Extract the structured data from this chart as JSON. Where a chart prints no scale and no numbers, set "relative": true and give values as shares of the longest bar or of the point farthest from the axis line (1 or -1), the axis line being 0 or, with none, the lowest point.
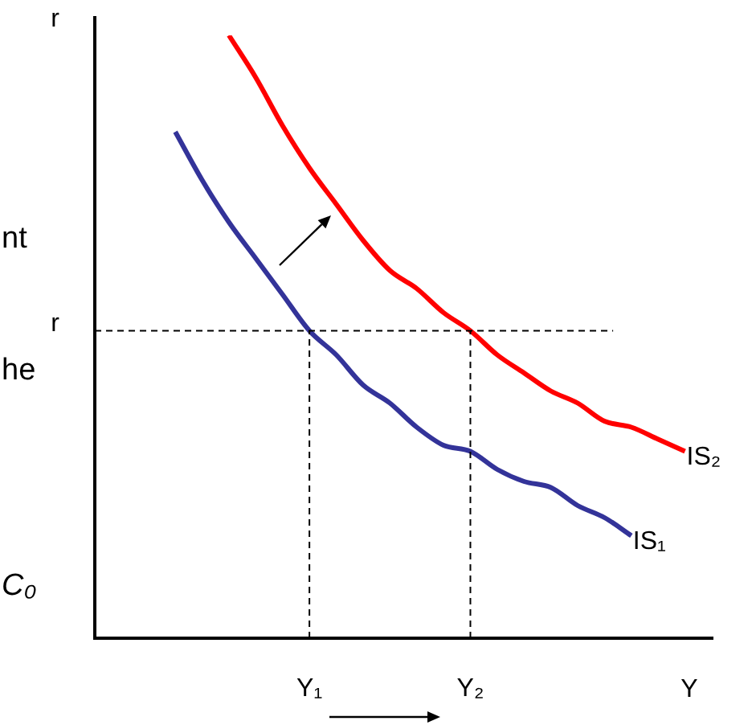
{
  "chart_data": {
    "type": "line",
    "relative": true,
    "ylabel": "r",
    "xlabel": "Y",
    "categories": [
      null,
      null,
      null,
      null,
      null,
      null,
      null,
      null,
      "Y₁",
      null,
      null,
      null,
      null,
      null,
      "Y₂",
      null,
      null,
      null,
      null,
      null,
      null,
      null,
      null,
      null
    ],
    "legend": false,
    "marker": "none",
    "line_style": "solid",
    "ref_lines": [
      {
        "axis": "y",
        "value": 0.51,
        "label": "r",
        "line_style": "dashed"
      },
      {
        "axis": "x",
        "value": "Y₁",
        "line_style": "dashed"
      },
      {
        "axis": "x",
        "value": "Y₂",
        "line_style": "dashed"
      }
    ],
    "annotations": [
      "nt",
      "he",
      "C₀"
    ],
    "series": [
      {
        "name": "IS₁",
        "color": "#333399",
        "values": [
          null,
          null,
          null,
          0.84,
          0.76,
          0.69,
          0.63,
          0.57,
          0.51,
          0.47,
          0.42,
          0.39,
          0.35,
          0.32,
          0.31,
          0.28,
          0.26,
          0.25,
          0.22,
          0.2,
          0.17,
          null,
          null,
          null
        ]
      },
      {
        "name": "IS₂",
        "color": "#ff0000",
        "values": [
          null,
          null,
          null,
          null,
          null,
          1.0,
          0.93,
          0.85,
          0.78,
          0.72,
          0.66,
          0.61,
          0.58,
          0.54,
          0.51,
          0.47,
          0.44,
          0.41,
          0.39,
          0.36,
          0.35,
          0.33,
          0.31,
          null
        ]
      }
    ]
  }
}
